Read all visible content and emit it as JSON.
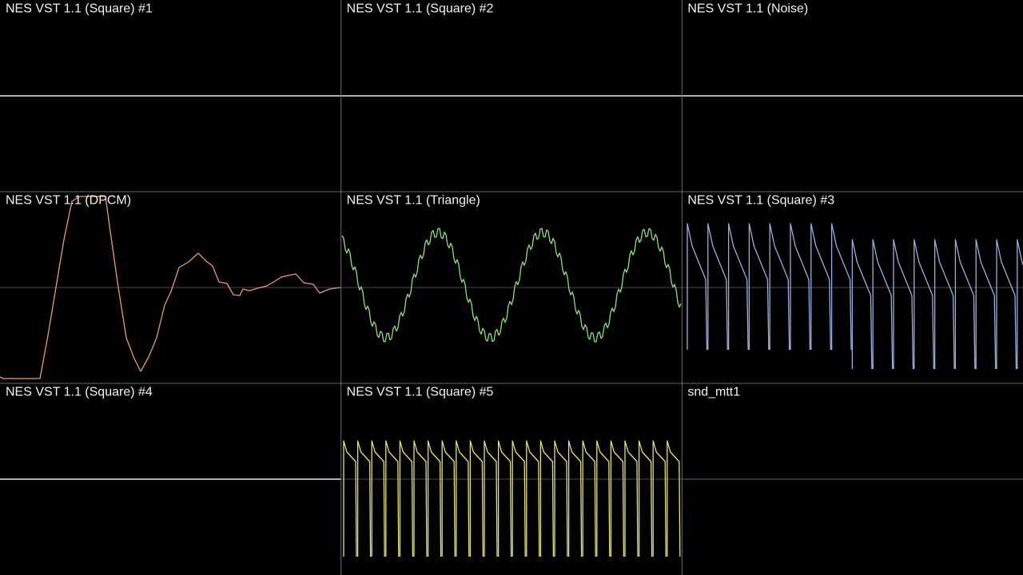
{
  "panels": [
    {
      "label": "NES VST 1.1 (Square) #1"
    },
    {
      "label": "NES VST 1.1 (Square) #2"
    },
    {
      "label": "NES VST 1.1 (Noise)"
    },
    {
      "label": "NES VST 1.1 (DPCM)"
    },
    {
      "label": "NES VST 1.1 (Triangle)"
    },
    {
      "label": "NES VST 1.1 (Square) #3"
    },
    {
      "label": "NES VST 1.1 (Square) #4"
    },
    {
      "label": "NES VST 1.1 (Square) #5"
    },
    {
      "label": "snd_mtt1"
    }
  ]
}
